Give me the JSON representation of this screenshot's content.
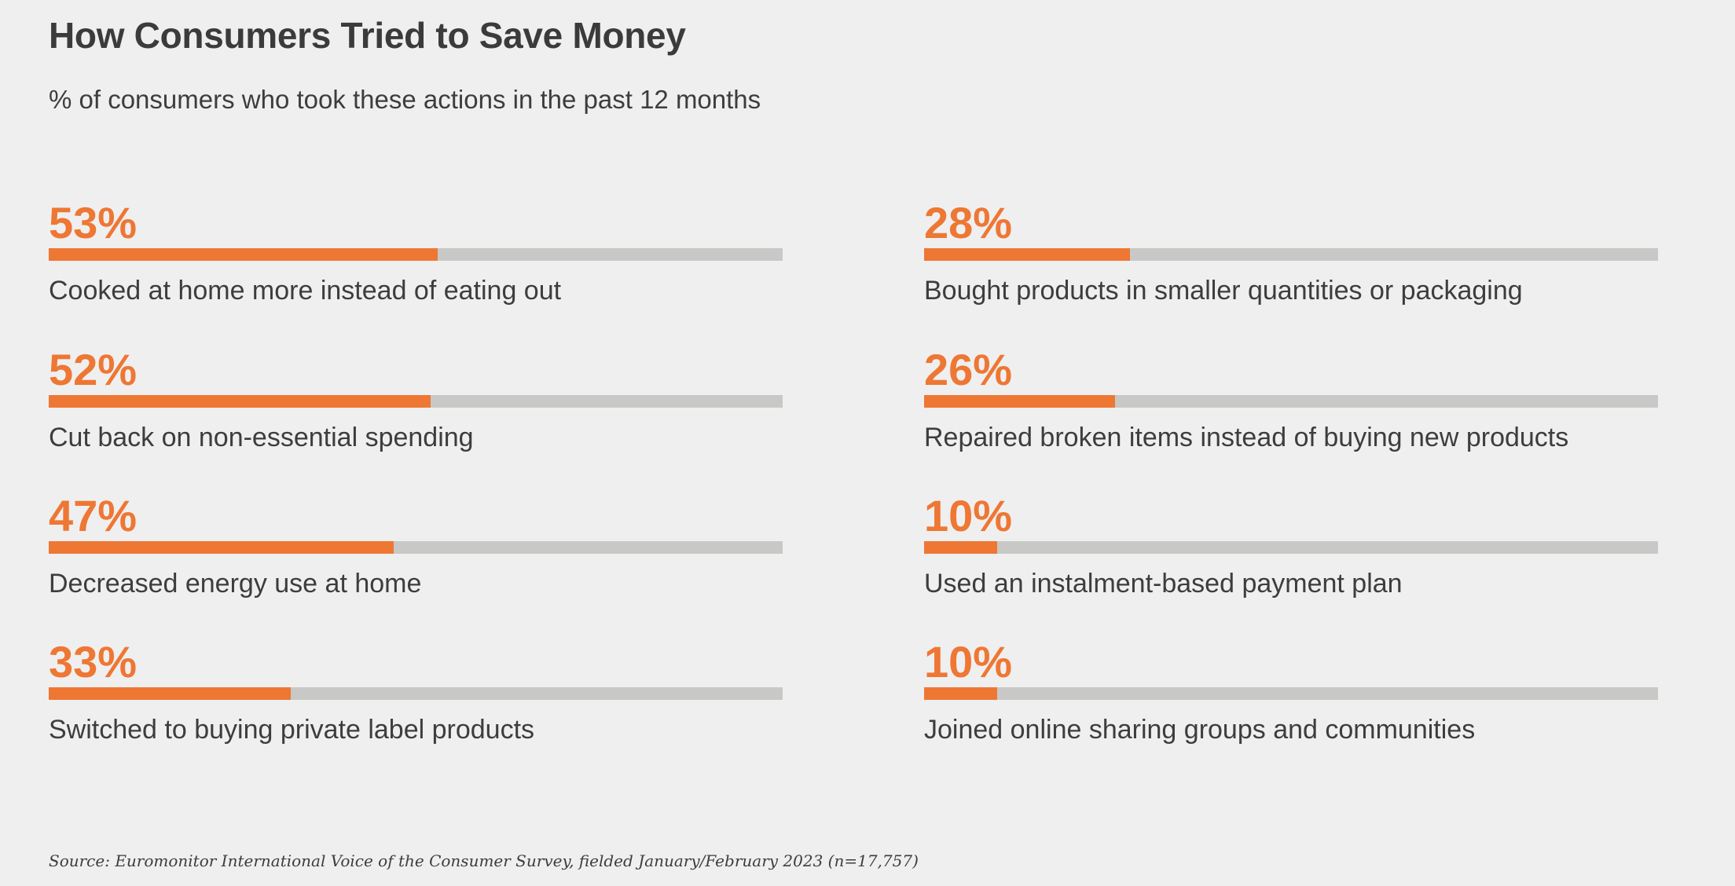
{
  "header": {
    "title": "How Consumers Tried to Save Money",
    "subtitle": "% of consumers who took these actions in the past 12 months"
  },
  "footer": {
    "source": "Source: Euromonitor International Voice of the Consumer Survey, fielded January/February 2023 (n=17,757)"
  },
  "colors": {
    "accent": "#ee7734",
    "track": "#c8c8c7",
    "background": "#efefef",
    "text": "#3d3d3d"
  },
  "chart_data": {
    "type": "bar",
    "orientation": "horizontal",
    "title": "How Consumers Tried to Save Money",
    "subtitle": "% of consumers who took these actions in the past 12 months",
    "ylim": [
      0,
      100
    ],
    "unit": "%",
    "categories": [
      "Cooked at home more instead of eating out",
      "Cut back on non-essential spending",
      "Decreased energy use at home",
      "Switched to buying private label products",
      "Bought products in smaller quantities or packaging",
      "Repaired broken items instead of buying new products",
      "Used an instalment-based payment plan",
      "Joined online sharing groups and communities"
    ],
    "values": [
      53,
      52,
      47,
      33,
      28,
      26,
      10,
      10
    ],
    "value_labels": [
      "53%",
      "52%",
      "47%",
      "33%",
      "28%",
      "26%",
      "10%",
      "10%"
    ]
  }
}
